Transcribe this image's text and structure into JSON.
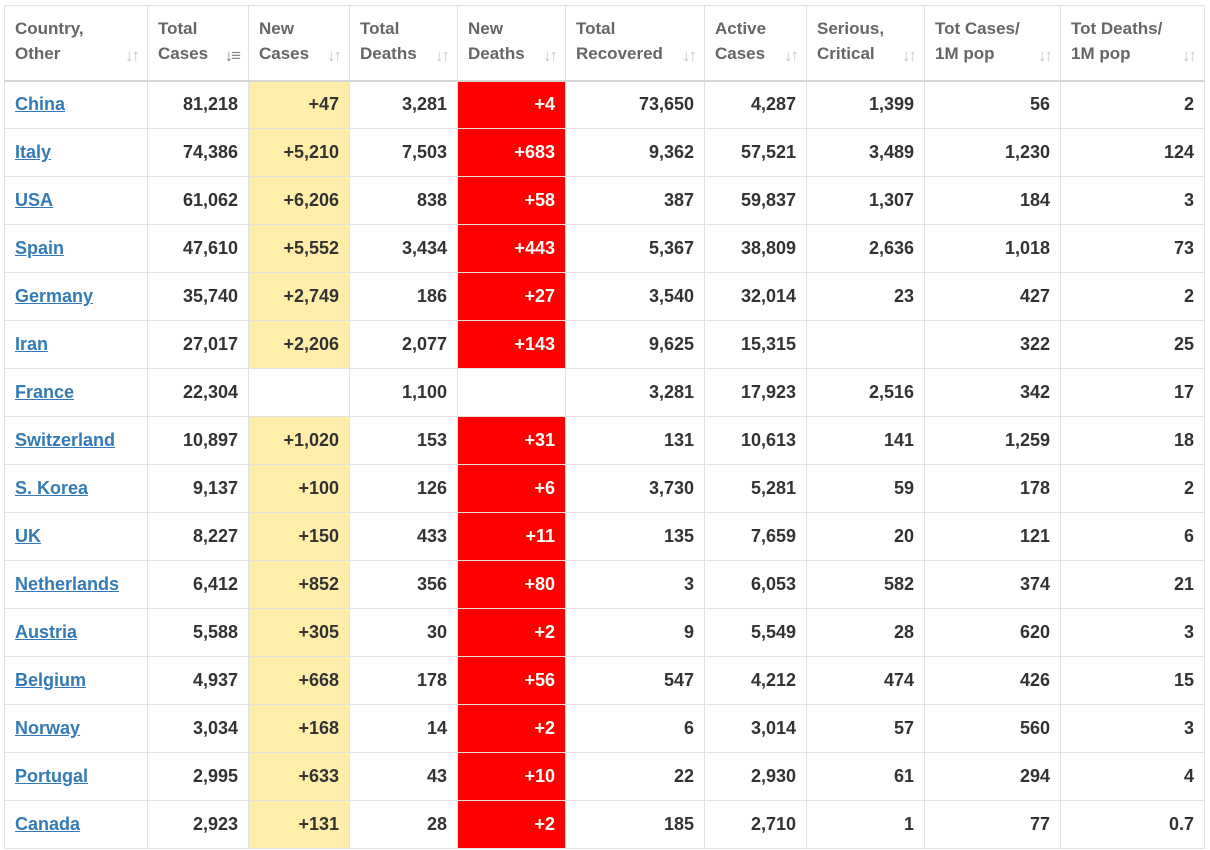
{
  "headers": [
    {
      "line1": "Country,",
      "line2": "Other",
      "sorted": false
    },
    {
      "line1": "Total",
      "line2": "Cases",
      "sorted": true
    },
    {
      "line1": "New",
      "line2": "Cases",
      "sorted": false
    },
    {
      "line1": "Total",
      "line2": "Deaths",
      "sorted": false
    },
    {
      "line1": "New",
      "line2": "Deaths",
      "sorted": false
    },
    {
      "line1": "Total",
      "line2": "Recovered",
      "sorted": false
    },
    {
      "line1": "Active",
      "line2": "Cases",
      "sorted": false
    },
    {
      "line1": "Serious,",
      "line2": "Critical",
      "sorted": false
    },
    {
      "line1": "Tot Cases/",
      "line2": "1M pop",
      "sorted": false
    },
    {
      "line1": "Tot Deaths/",
      "line2": "1M pop",
      "sorted": false
    }
  ],
  "rows": [
    {
      "country": "China",
      "total_cases": "81,218",
      "new_cases": "+47",
      "total_deaths": "3,281",
      "new_deaths": "+4",
      "total_recovered": "73,650",
      "active_cases": "4,287",
      "serious_critical": "1,399",
      "cases_per_1m": "56",
      "deaths_per_1m": "2"
    },
    {
      "country": "Italy",
      "total_cases": "74,386",
      "new_cases": "+5,210",
      "total_deaths": "7,503",
      "new_deaths": "+683",
      "total_recovered": "9,362",
      "active_cases": "57,521",
      "serious_critical": "3,489",
      "cases_per_1m": "1,230",
      "deaths_per_1m": "124"
    },
    {
      "country": "USA",
      "total_cases": "61,062",
      "new_cases": "+6,206",
      "total_deaths": "838",
      "new_deaths": "+58",
      "total_recovered": "387",
      "active_cases": "59,837",
      "serious_critical": "1,307",
      "cases_per_1m": "184",
      "deaths_per_1m": "3"
    },
    {
      "country": "Spain",
      "total_cases": "47,610",
      "new_cases": "+5,552",
      "total_deaths": "3,434",
      "new_deaths": "+443",
      "total_recovered": "5,367",
      "active_cases": "38,809",
      "serious_critical": "2,636",
      "cases_per_1m": "1,018",
      "deaths_per_1m": "73"
    },
    {
      "country": "Germany",
      "total_cases": "35,740",
      "new_cases": "+2,749",
      "total_deaths": "186",
      "new_deaths": "+27",
      "total_recovered": "3,540",
      "active_cases": "32,014",
      "serious_critical": "23",
      "cases_per_1m": "427",
      "deaths_per_1m": "2"
    },
    {
      "country": "Iran",
      "total_cases": "27,017",
      "new_cases": "+2,206",
      "total_deaths": "2,077",
      "new_deaths": "+143",
      "total_recovered": "9,625",
      "active_cases": "15,315",
      "serious_critical": "",
      "cases_per_1m": "322",
      "deaths_per_1m": "25"
    },
    {
      "country": "France",
      "total_cases": "22,304",
      "new_cases": "",
      "total_deaths": "1,100",
      "new_deaths": "",
      "total_recovered": "3,281",
      "active_cases": "17,923",
      "serious_critical": "2,516",
      "cases_per_1m": "342",
      "deaths_per_1m": "17"
    },
    {
      "country": "Switzerland",
      "total_cases": "10,897",
      "new_cases": "+1,020",
      "total_deaths": "153",
      "new_deaths": "+31",
      "total_recovered": "131",
      "active_cases": "10,613",
      "serious_critical": "141",
      "cases_per_1m": "1,259",
      "deaths_per_1m": "18"
    },
    {
      "country": "S. Korea",
      "total_cases": "9,137",
      "new_cases": "+100",
      "total_deaths": "126",
      "new_deaths": "+6",
      "total_recovered": "3,730",
      "active_cases": "5,281",
      "serious_critical": "59",
      "cases_per_1m": "178",
      "deaths_per_1m": "2"
    },
    {
      "country": "UK",
      "total_cases": "8,227",
      "new_cases": "+150",
      "total_deaths": "433",
      "new_deaths": "+11",
      "total_recovered": "135",
      "active_cases": "7,659",
      "serious_critical": "20",
      "cases_per_1m": "121",
      "deaths_per_1m": "6"
    },
    {
      "country": "Netherlands",
      "total_cases": "6,412",
      "new_cases": "+852",
      "total_deaths": "356",
      "new_deaths": "+80",
      "total_recovered": "3",
      "active_cases": "6,053",
      "serious_critical": "582",
      "cases_per_1m": "374",
      "deaths_per_1m": "21"
    },
    {
      "country": "Austria",
      "total_cases": "5,588",
      "new_cases": "+305",
      "total_deaths": "30",
      "new_deaths": "+2",
      "total_recovered": "9",
      "active_cases": "5,549",
      "serious_critical": "28",
      "cases_per_1m": "620",
      "deaths_per_1m": "3"
    },
    {
      "country": "Belgium",
      "total_cases": "4,937",
      "new_cases": "+668",
      "total_deaths": "178",
      "new_deaths": "+56",
      "total_recovered": "547",
      "active_cases": "4,212",
      "serious_critical": "474",
      "cases_per_1m": "426",
      "deaths_per_1m": "15"
    },
    {
      "country": "Norway",
      "total_cases": "3,034",
      "new_cases": "+168",
      "total_deaths": "14",
      "new_deaths": "+2",
      "total_recovered": "6",
      "active_cases": "3,014",
      "serious_critical": "57",
      "cases_per_1m": "560",
      "deaths_per_1m": "3"
    },
    {
      "country": "Portugal",
      "total_cases": "2,995",
      "new_cases": "+633",
      "total_deaths": "43",
      "new_deaths": "+10",
      "total_recovered": "22",
      "active_cases": "2,930",
      "serious_critical": "61",
      "cases_per_1m": "294",
      "deaths_per_1m": "4"
    },
    {
      "country": "Canada",
      "total_cases": "2,923",
      "new_cases": "+131",
      "total_deaths": "28",
      "new_deaths": "+2",
      "total_recovered": "185",
      "active_cases": "2,710",
      "serious_critical": "1",
      "cases_per_1m": "77",
      "deaths_per_1m": "0.7"
    }
  ]
}
